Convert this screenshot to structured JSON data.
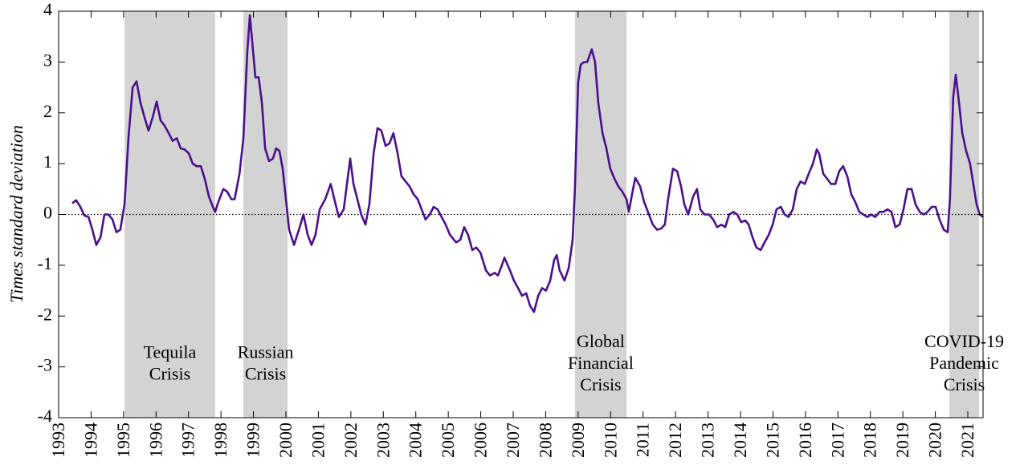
{
  "chart_data": {
    "type": "line",
    "ylabel": "Times standard deviation",
    "xlim": [
      1993,
      2021.47
    ],
    "ylim": [
      -4,
      4
    ],
    "xticks": [
      1993,
      1994,
      1995,
      1996,
      1997,
      1998,
      1999,
      2000,
      2001,
      2002,
      2003,
      2004,
      2005,
      2006,
      2007,
      2008,
      2009,
      2010,
      2011,
      2012,
      2013,
      2014,
      2015,
      2016,
      2017,
      2018,
      2019,
      2020,
      2021
    ],
    "yticks": [
      -4,
      -3,
      -2,
      -1,
      0,
      1,
      2,
      3,
      4
    ],
    "reference_line": 0,
    "shade_color": "#d3d3d3",
    "label_color": "#4b0f8c",
    "shaded_regions": [
      {
        "start": 1995.03,
        "end": 1997.82,
        "label": [
          "Tequila",
          "Crisis"
        ]
      },
      {
        "start": 1998.69,
        "end": 2000.05,
        "label": [
          "Russian",
          "Crisis"
        ]
      },
      {
        "start": 2008.9,
        "end": 2010.49,
        "label": [
          "Global",
          "Financial",
          "Crisis"
        ]
      },
      {
        "start": 2020.43,
        "end": 2021.35,
        "label": [
          "COVID-19",
          "Pandemic",
          "Crisis"
        ]
      }
    ],
    "series": [
      {
        "color": "#4b0f8c",
        "x": [
          1993.42,
          1993.54,
          1993.67,
          1993.79,
          1993.92,
          1994.04,
          1994.16,
          1994.29,
          1994.41,
          1994.53,
          1994.66,
          1994.78,
          1994.9,
          1995.03,
          1995.15,
          1995.28,
          1995.4,
          1995.52,
          1995.65,
          1995.77,
          1995.89,
          1996.02,
          1996.14,
          1996.26,
          1996.39,
          1996.51,
          1996.64,
          1996.76,
          1996.88,
          1997.01,
          1997.13,
          1997.25,
          1997.38,
          1997.5,
          1997.63,
          1997.75,
          1997.82,
          1997.92,
          1998.07,
          1998.19,
          1998.32,
          1998.42,
          1998.57,
          1998.69,
          1998.81,
          1998.89,
          1998.99,
          1999.06,
          1999.16,
          1999.26,
          1999.36,
          1999.48,
          1999.6,
          1999.7,
          1999.8,
          1999.9,
          2000.0,
          2000.1,
          2000.25,
          2000.4,
          2000.54,
          2000.67,
          2000.79,
          2000.91,
          2001.04,
          2001.21,
          2001.38,
          2001.53,
          2001.63,
          2001.78,
          2001.88,
          2001.98,
          2002.08,
          2002.2,
          2002.32,
          2002.45,
          2002.57,
          2002.7,
          2002.82,
          2002.94,
          2003.07,
          2003.19,
          2003.31,
          2003.44,
          2003.56,
          2003.81,
          2003.93,
          2004.06,
          2004.18,
          2004.3,
          2004.43,
          2004.55,
          2004.67,
          2004.92,
          2005.05,
          2005.24,
          2005.37,
          2005.49,
          2005.61,
          2005.74,
          2005.86,
          2005.99,
          2006.16,
          2006.28,
          2006.43,
          2006.53,
          2006.65,
          2006.73,
          2006.9,
          2007.02,
          2007.15,
          2007.27,
          2007.4,
          2007.52,
          2007.64,
          2007.77,
          2007.89,
          2008.01,
          2008.14,
          2008.26,
          2008.34,
          2008.43,
          2008.58,
          2008.71,
          2008.83,
          2008.9,
          2009.0,
          2009.08,
          2009.18,
          2009.28,
          2009.42,
          2009.52,
          2009.62,
          2009.75,
          2009.87,
          2009.99,
          2010.12,
          2010.24,
          2010.36,
          2010.49,
          2010.56,
          2010.66,
          2010.76,
          2010.91,
          2011.03,
          2011.18,
          2011.3,
          2011.43,
          2011.55,
          2011.67,
          2011.77,
          2011.92,
          2012.05,
          2012.17,
          2012.27,
          2012.39,
          2012.54,
          2012.66,
          2012.76,
          2012.89,
          2013.03,
          2013.16,
          2013.28,
          2013.41,
          2013.53,
          2013.65,
          2013.78,
          2013.9,
          2014.02,
          2014.15,
          2014.25,
          2014.37,
          2014.49,
          2014.62,
          2014.74,
          2014.87,
          2014.99,
          2015.11,
          2015.24,
          2015.36,
          2015.48,
          2015.61,
          2015.73,
          2015.85,
          2015.98,
          2016.1,
          2016.23,
          2016.35,
          2016.42,
          2016.55,
          2016.67,
          2016.79,
          2016.92,
          2017.04,
          2017.16,
          2017.29,
          2017.41,
          2017.53,
          2017.66,
          2017.78,
          2017.91,
          2018.03,
          2018.15,
          2018.28,
          2018.4,
          2018.53,
          2018.65,
          2018.77,
          2018.9,
          2019.02,
          2019.14,
          2019.27,
          2019.39,
          2019.52,
          2019.64,
          2019.76,
          2019.89,
          2020.01,
          2020.13,
          2020.26,
          2020.38,
          2020.45,
          2020.55,
          2020.63,
          2020.73,
          2020.83,
          2020.95,
          2021.07,
          2021.17,
          2021.27,
          2021.37,
          2021.47
        ],
        "values": [
          0.22,
          0.28,
          0.15,
          -0.02,
          -0.05,
          -0.3,
          -0.6,
          -0.45,
          0.0,
          0.0,
          -0.1,
          -0.35,
          -0.3,
          0.2,
          1.5,
          2.5,
          2.62,
          2.2,
          1.9,
          1.65,
          1.9,
          2.22,
          1.85,
          1.75,
          1.6,
          1.45,
          1.5,
          1.3,
          1.28,
          1.2,
          1.0,
          0.95,
          0.95,
          0.7,
          0.35,
          0.15,
          0.05,
          0.25,
          0.5,
          0.45,
          0.3,
          0.3,
          0.8,
          1.5,
          3.2,
          3.92,
          3.2,
          2.7,
          2.7,
          2.2,
          1.3,
          1.05,
          1.1,
          1.3,
          1.25,
          0.9,
          0.3,
          -0.3,
          -0.6,
          -0.3,
          0.0,
          -0.4,
          -0.6,
          -0.4,
          0.1,
          0.3,
          0.6,
          0.2,
          -0.05,
          0.1,
          0.6,
          1.1,
          0.6,
          0.3,
          0.0,
          -0.2,
          0.2,
          1.2,
          1.7,
          1.65,
          1.35,
          1.4,
          1.6,
          1.2,
          0.75,
          0.55,
          0.4,
          0.3,
          0.1,
          -0.1,
          0.0,
          0.15,
          0.1,
          -0.2,
          -0.4,
          -0.55,
          -0.5,
          -0.25,
          -0.4,
          -0.7,
          -0.65,
          -0.75,
          -1.1,
          -1.2,
          -1.15,
          -1.2,
          -1.0,
          -0.85,
          -1.1,
          -1.3,
          -1.45,
          -1.6,
          -1.55,
          -1.8,
          -1.92,
          -1.6,
          -1.45,
          -1.5,
          -1.3,
          -0.9,
          -0.8,
          -1.1,
          -1.3,
          -1.05,
          -0.5,
          0.5,
          2.6,
          2.95,
          3.0,
          3.0,
          3.25,
          3.0,
          2.2,
          1.6,
          1.3,
          0.9,
          0.7,
          0.55,
          0.45,
          0.3,
          0.05,
          0.4,
          0.72,
          0.55,
          0.25,
          0.0,
          -0.2,
          -0.3,
          -0.28,
          -0.2,
          0.3,
          0.9,
          0.85,
          0.55,
          0.2,
          0.0,
          0.35,
          0.5,
          0.1,
          0.0,
          0.0,
          -0.1,
          -0.25,
          -0.2,
          -0.25,
          0.0,
          0.05,
          0.0,
          -0.15,
          -0.12,
          -0.2,
          -0.45,
          -0.65,
          -0.7,
          -0.55,
          -0.4,
          -0.2,
          0.1,
          0.15,
          0.0,
          -0.05,
          0.1,
          0.5,
          0.65,
          0.6,
          0.8,
          1.0,
          1.28,
          1.2,
          0.8,
          0.7,
          0.6,
          0.6,
          0.85,
          0.95,
          0.75,
          0.4,
          0.25,
          0.05,
          0.0,
          -0.05,
          0.0,
          -0.05,
          0.05,
          0.05,
          0.1,
          0.05,
          -0.25,
          -0.2,
          0.1,
          0.5,
          0.5,
          0.2,
          0.05,
          0.0,
          0.05,
          0.15,
          0.15,
          -0.1,
          -0.3,
          -0.35,
          0.3,
          2.3,
          2.75,
          2.2,
          1.6,
          1.25,
          1.0,
          0.6,
          0.2,
          0.0,
          -0.05
        ]
      }
    ]
  }
}
